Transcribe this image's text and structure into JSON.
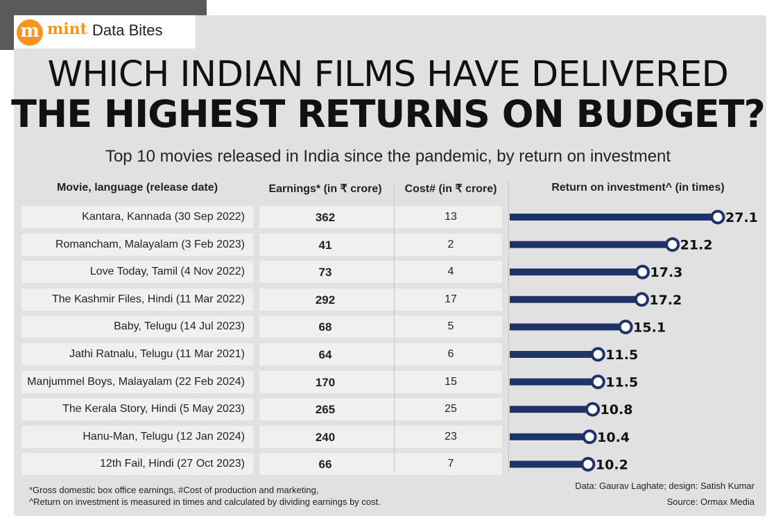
{
  "brand": {
    "logo_letter": "m",
    "name": "mint",
    "section": "Data Bites"
  },
  "title_line1": "WHICH INDIAN FILMS HAVE DELIVERED",
  "title_line2": "THE HIGHEST RETURNS ON BUDGET?",
  "subtitle": "Top 10 movies released in India since the pandemic, by return on investment",
  "columns": {
    "movie": "Movie, language (release date)",
    "earnings": "Earnings* (in ₹ crore)",
    "cost": "Cost# (in ₹ crore)",
    "roi": "Return on investment^ (in times)"
  },
  "colors": {
    "bar": "#1e3469",
    "background": "#e1e1e1",
    "row": "#f0f0f0",
    "brand": "#f7941d"
  },
  "chart_data": {
    "type": "bar",
    "orientation": "horizontal",
    "categories": [
      "Kantara, Kannada (30 Sep 2022)",
      "Romancham, Malayalam (3 Feb 2023)",
      "Love Today, Tamil (4 Nov 2022)",
      "The Kashmir Files, Hindi (11 Mar 2022)",
      "Baby, Telugu (14 Jul 2023)",
      "Jathi Ratnalu, Telugu (11 Mar 2021)",
      "Manjummel Boys, Malayalam (22 Feb 2024)",
      "The Kerala Story, Hindi (5 May 2023)",
      "Hanu-Man, Telugu (12 Jan 2024)",
      "12th Fail, Hindi (27 Oct 2023)"
    ],
    "earnings": [
      "362",
      "41",
      "73",
      "292",
      "68",
      "64",
      "170",
      "265",
      "240",
      "66"
    ],
    "cost": [
      "13",
      "2",
      "4",
      "17",
      "5",
      "6",
      "15",
      "25",
      "23",
      "7"
    ],
    "values": [
      27.1,
      21.2,
      17.3,
      17.2,
      15.1,
      11.5,
      11.5,
      10.8,
      10.4,
      10.2
    ],
    "value_labels": [
      "27.1",
      "21.2",
      "17.3",
      "17.2",
      "15.1",
      "11.5",
      "11.5",
      "10.8",
      "10.4",
      "10.2"
    ],
    "xlim": [
      0,
      27.1
    ]
  },
  "footnotes": {
    "line1": "*Gross domestic box office earnings, #Cost of production and marketing,",
    "line2": "^Return on investment is measured in times and calculated by dividing earnings by cost.",
    "credit": "Data: Gaurav Laghate; design: Satish Kumar",
    "source": "Source: Ormax Media"
  }
}
